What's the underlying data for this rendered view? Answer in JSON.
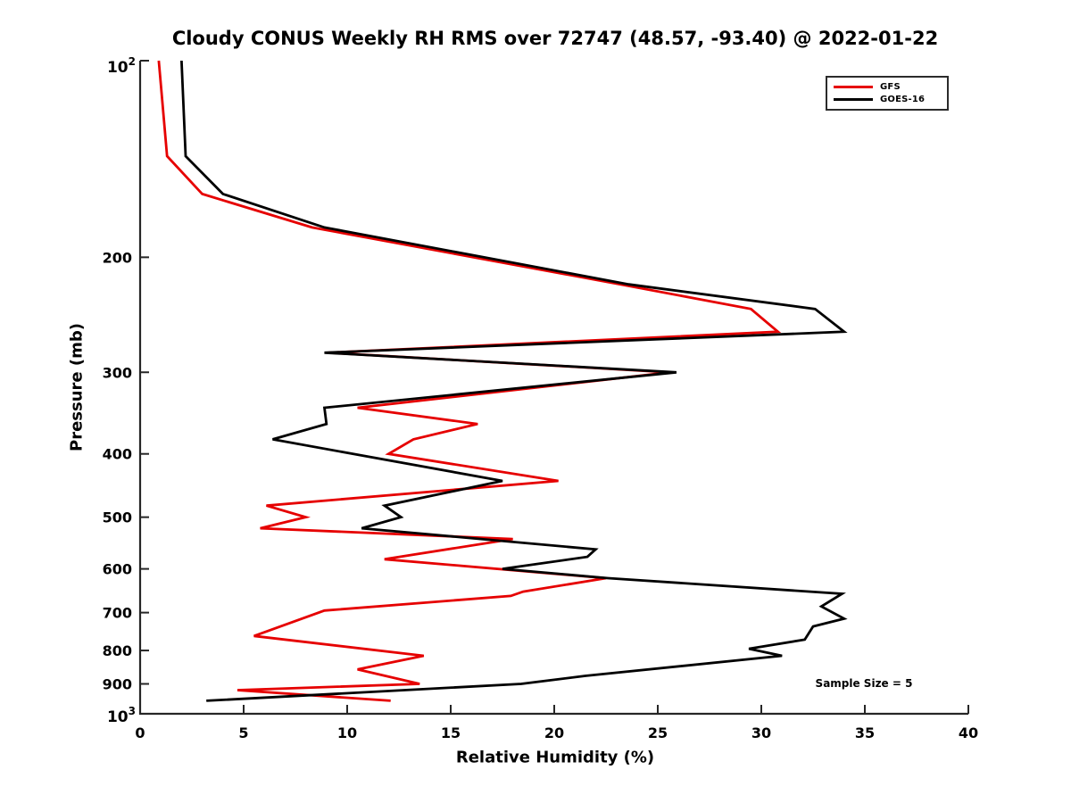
{
  "title": "Cloudy CONUS Weekly RH RMS over 72747 (48.57, -93.40) @ 2022-01-22",
  "annotation": "Sample Size = 5",
  "axis_color": "#262626",
  "chart_data": {
    "type": "line",
    "title": "Cloudy CONUS Weekly RH RMS over 72747 (48.57, -93.40) @ 2022-01-22",
    "xlabel": "Relative Humidity (%)",
    "ylabel": "Pressure (mb)",
    "xlim": [
      0,
      40
    ],
    "ylim": [
      100,
      1000
    ],
    "y_scale": "log",
    "y_inverted": true,
    "grid": false,
    "legend_position": "upper right",
    "sample_size": 5,
    "x_ticks": [
      0,
      5,
      10,
      15,
      20,
      25,
      30,
      35,
      40
    ],
    "y_ticks": [
      {
        "p": 100,
        "text": "10",
        "sup": "2"
      },
      {
        "p": 200,
        "text": "200"
      },
      {
        "p": 300,
        "text": "300"
      },
      {
        "p": 400,
        "text": "400"
      },
      {
        "p": 500,
        "text": "500"
      },
      {
        "p": 600,
        "text": "600"
      },
      {
        "p": 700,
        "text": "700"
      },
      {
        "p": 800,
        "text": "800"
      },
      {
        "p": 900,
        "text": "900"
      },
      {
        "p": 1000,
        "text": "10",
        "sup": "3"
      }
    ],
    "point_format": "[rh_percent, pressure_mb]",
    "series": [
      {
        "name": "GFS",
        "color": "#e60000",
        "points": [
          [
            0.9,
            100
          ],
          [
            1.3,
            140
          ],
          [
            3.0,
            160
          ],
          [
            8.3,
            180
          ],
          [
            23.2,
            220
          ],
          [
            29.5,
            240
          ],
          [
            30.8,
            260
          ],
          [
            9.1,
            280
          ],
          [
            25.6,
            300
          ],
          [
            10.5,
            340
          ],
          [
            16.3,
            360
          ],
          [
            13.2,
            380
          ],
          [
            12.0,
            400
          ],
          [
            20.2,
            440
          ],
          [
            6.1,
            480
          ],
          [
            8.0,
            500
          ],
          [
            5.8,
            520
          ],
          [
            18.0,
            540
          ],
          [
            11.8,
            580
          ],
          [
            22.5,
            620
          ],
          [
            18.5,
            650
          ],
          [
            17.9,
            660
          ],
          [
            8.9,
            695
          ],
          [
            5.5,
            760
          ],
          [
            13.7,
            815
          ],
          [
            10.5,
            855
          ],
          [
            13.5,
            900
          ],
          [
            4.7,
            920
          ],
          [
            12.1,
            955
          ]
        ]
      },
      {
        "name": "GOES-16",
        "color": "#000000",
        "points": [
          [
            2.0,
            100
          ],
          [
            2.2,
            140
          ],
          [
            4.0,
            160
          ],
          [
            8.9,
            180
          ],
          [
            23.6,
            220
          ],
          [
            32.6,
            240
          ],
          [
            34.0,
            260
          ],
          [
            8.9,
            280
          ],
          [
            25.9,
            300
          ],
          [
            8.9,
            340
          ],
          [
            9.0,
            360
          ],
          [
            6.4,
            380
          ],
          [
            17.5,
            440
          ],
          [
            11.8,
            480
          ],
          [
            12.6,
            500
          ],
          [
            10.7,
            520
          ],
          [
            22.0,
            560
          ],
          [
            21.6,
            575
          ],
          [
            17.5,
            600
          ],
          [
            22.6,
            620
          ],
          [
            33.9,
            655
          ],
          [
            32.9,
            685
          ],
          [
            34.0,
            715
          ],
          [
            32.5,
            735
          ],
          [
            32.1,
            770
          ],
          [
            29.4,
            795
          ],
          [
            31.0,
            815
          ],
          [
            21.5,
            875
          ],
          [
            18.4,
            900
          ],
          [
            3.2,
            955
          ]
        ]
      }
    ]
  }
}
